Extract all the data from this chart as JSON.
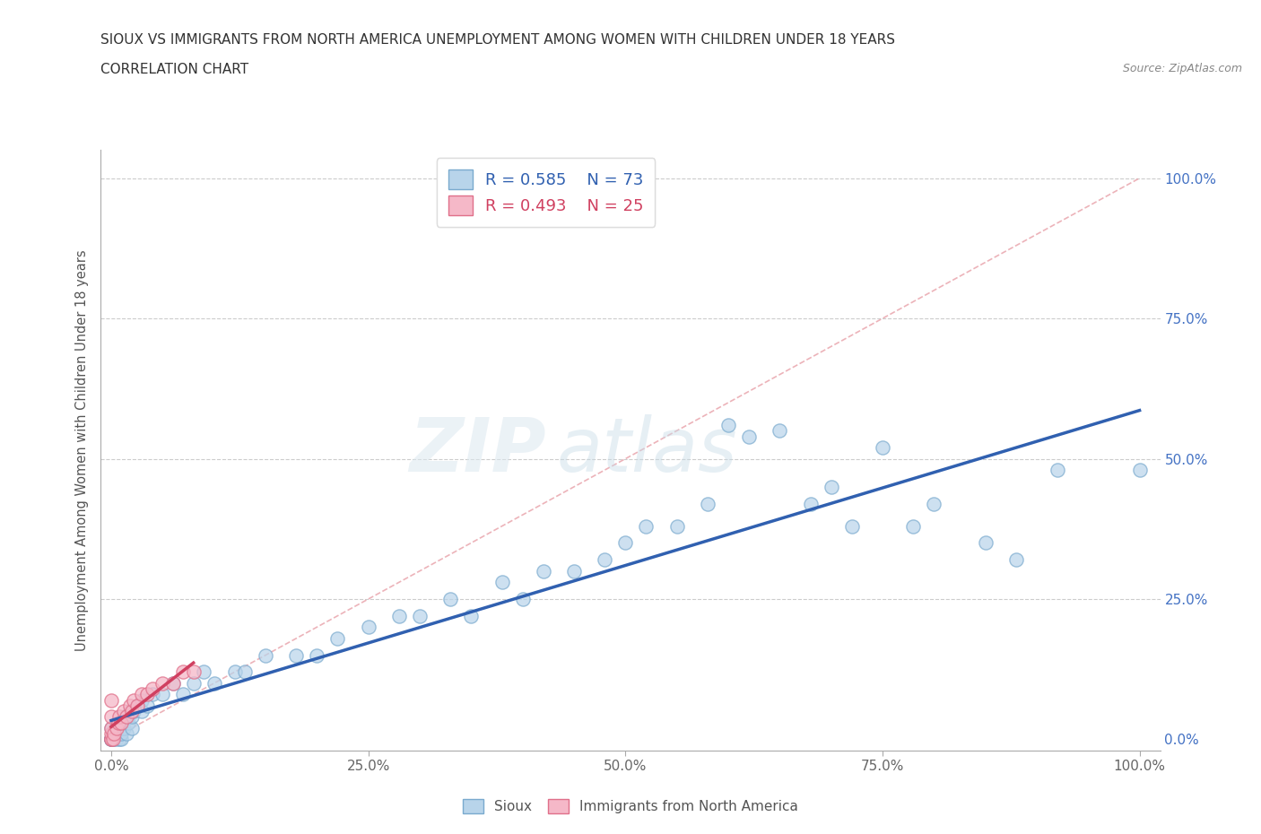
{
  "title_line1": "SIOUX VS IMMIGRANTS FROM NORTH AMERICA UNEMPLOYMENT AMONG WOMEN WITH CHILDREN UNDER 18 YEARS",
  "title_line2": "CORRELATION CHART",
  "source": "Source: ZipAtlas.com",
  "ylabel": "Unemployment Among Women with Children Under 18 years",
  "xtick_labels": [
    "0.0%",
    "25.0%",
    "50.0%",
    "75.0%",
    "100.0%"
  ],
  "xtick_vals": [
    0.0,
    0.25,
    0.5,
    0.75,
    1.0
  ],
  "ytick_labels_right": [
    "0.0%",
    "25.0%",
    "50.0%",
    "75.0%",
    "100.0%"
  ],
  "ytick_vals_right": [
    0.0,
    0.25,
    0.5,
    0.75,
    1.0
  ],
  "sioux_color": "#b8d4ea",
  "sioux_edge_color": "#7aaace",
  "immigrants_color": "#f5b8c8",
  "immigrants_edge_color": "#e0708a",
  "trendline_sioux_color": "#3060b0",
  "trendline_immigrants_color": "#d04060",
  "trendline_diag_color": "#e8a0a8",
  "R_sioux": 0.585,
  "N_sioux": 73,
  "R_immigrants": 0.493,
  "N_immigrants": 25,
  "sioux_x": [
    0.0,
    0.0,
    0.0,
    0.0,
    0.0,
    0.0,
    0.0,
    0.002,
    0.002,
    0.003,
    0.003,
    0.004,
    0.005,
    0.005,
    0.007,
    0.008,
    0.008,
    0.01,
    0.01,
    0.01,
    0.012,
    0.013,
    0.015,
    0.015,
    0.017,
    0.018,
    0.02,
    0.02,
    0.022,
    0.025,
    0.03,
    0.03,
    0.035,
    0.04,
    0.05,
    0.06,
    0.07,
    0.08,
    0.09,
    0.1,
    0.12,
    0.13,
    0.15,
    0.18,
    0.2,
    0.22,
    0.25,
    0.28,
    0.3,
    0.33,
    0.35,
    0.38,
    0.4,
    0.42,
    0.45,
    0.48,
    0.5,
    0.52,
    0.55,
    0.58,
    0.6,
    0.62,
    0.65,
    0.68,
    0.7,
    0.72,
    0.75,
    0.78,
    0.8,
    0.85,
    0.88,
    0.92,
    1.0
  ],
  "sioux_y": [
    0.0,
    0.0,
    0.0,
    0.0,
    0.0,
    0.0,
    0.02,
    0.0,
    0.01,
    0.0,
    0.01,
    0.02,
    0.0,
    0.02,
    0.01,
    0.0,
    0.03,
    0.0,
    0.01,
    0.03,
    0.02,
    0.04,
    0.01,
    0.04,
    0.03,
    0.05,
    0.02,
    0.04,
    0.05,
    0.06,
    0.05,
    0.07,
    0.06,
    0.08,
    0.08,
    0.1,
    0.08,
    0.1,
    0.12,
    0.1,
    0.12,
    0.12,
    0.15,
    0.15,
    0.15,
    0.18,
    0.2,
    0.22,
    0.22,
    0.25,
    0.22,
    0.28,
    0.25,
    0.3,
    0.3,
    0.32,
    0.35,
    0.38,
    0.38,
    0.42,
    0.56,
    0.54,
    0.55,
    0.42,
    0.45,
    0.38,
    0.52,
    0.38,
    0.42,
    0.35,
    0.32,
    0.48,
    0.48
  ],
  "immigrants_x": [
    0.0,
    0.0,
    0.0,
    0.0,
    0.0,
    0.0,
    0.002,
    0.003,
    0.005,
    0.007,
    0.008,
    0.01,
    0.012,
    0.015,
    0.018,
    0.02,
    0.022,
    0.025,
    0.03,
    0.035,
    0.04,
    0.05,
    0.06,
    0.07,
    0.08
  ],
  "immigrants_y": [
    0.0,
    0.0,
    0.01,
    0.02,
    0.04,
    0.07,
    0.0,
    0.01,
    0.02,
    0.03,
    0.04,
    0.03,
    0.05,
    0.04,
    0.06,
    0.05,
    0.07,
    0.06,
    0.08,
    0.08,
    0.09,
    0.1,
    0.1,
    0.12,
    0.12
  ]
}
